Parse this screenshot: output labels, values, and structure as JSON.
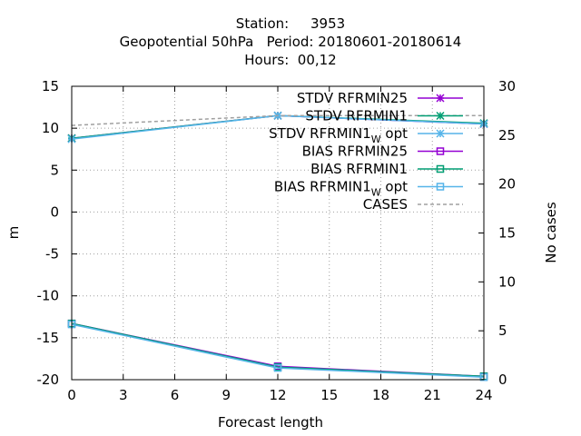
{
  "chart_data": {
    "type": "line",
    "title_lines": [
      "Station:     3953",
      "Geopotential 50hPa   Period: 20180601-20180614",
      "Hours:  00,12"
    ],
    "xlabel": "Forecast length",
    "ylabel": "m",
    "y2label": "No cases",
    "xlim": [
      0,
      24
    ],
    "ylim": [
      -20,
      15
    ],
    "y2lim": [
      0,
      30
    ],
    "xticks": [
      0,
      3,
      6,
      9,
      12,
      15,
      18,
      21,
      24
    ],
    "yticks": [
      -20,
      -15,
      -10,
      -5,
      0,
      5,
      10,
      15
    ],
    "y2ticks": [
      0,
      5,
      10,
      15,
      20,
      25,
      30
    ],
    "grid": true,
    "legend_position": "top-right",
    "series": [
      {
        "name": "STDV RFRMIN25",
        "axis": "y",
        "marker": "star",
        "color": "#9400d3",
        "x": [
          0,
          12,
          24
        ],
        "y": [
          8.8,
          11.5,
          10.5
        ]
      },
      {
        "name": "STDV RFRMIN1",
        "axis": "y",
        "marker": "star",
        "color": "#009e73",
        "x": [
          0,
          12,
          24
        ],
        "y": [
          8.8,
          11.5,
          10.6
        ]
      },
      {
        "name_main": "STDV RFRMIN1",
        "name_sub": "W",
        "name_rest": " opt",
        "axis": "y",
        "marker": "star",
        "color": "#56b4e9",
        "x": [
          0,
          12,
          24
        ],
        "y": [
          8.7,
          11.5,
          10.5
        ]
      },
      {
        "name": "BIAS RFRMIN25",
        "axis": "y",
        "marker": "square",
        "color": "#9400d3",
        "x": [
          0,
          12,
          24
        ],
        "y": [
          -13.3,
          -18.4,
          -19.6
        ]
      },
      {
        "name": "BIAS RFRMIN1",
        "axis": "y",
        "marker": "square",
        "color": "#009e73",
        "x": [
          0,
          12,
          24
        ],
        "y": [
          -13.3,
          -18.5,
          -19.6
        ]
      },
      {
        "name_main": "BIAS RFRMIN1",
        "name_sub": "W",
        "name_rest": " opt",
        "axis": "y",
        "marker": "square",
        "color": "#56b4e9",
        "x": [
          0,
          12,
          24
        ],
        "y": [
          -13.4,
          -18.6,
          -19.7
        ]
      },
      {
        "name": "CASES",
        "axis": "y2",
        "marker": "none",
        "dashed": true,
        "color": "#a0a0a0",
        "x": [
          0,
          12,
          24
        ],
        "y": [
          26,
          27,
          27
        ]
      }
    ]
  }
}
